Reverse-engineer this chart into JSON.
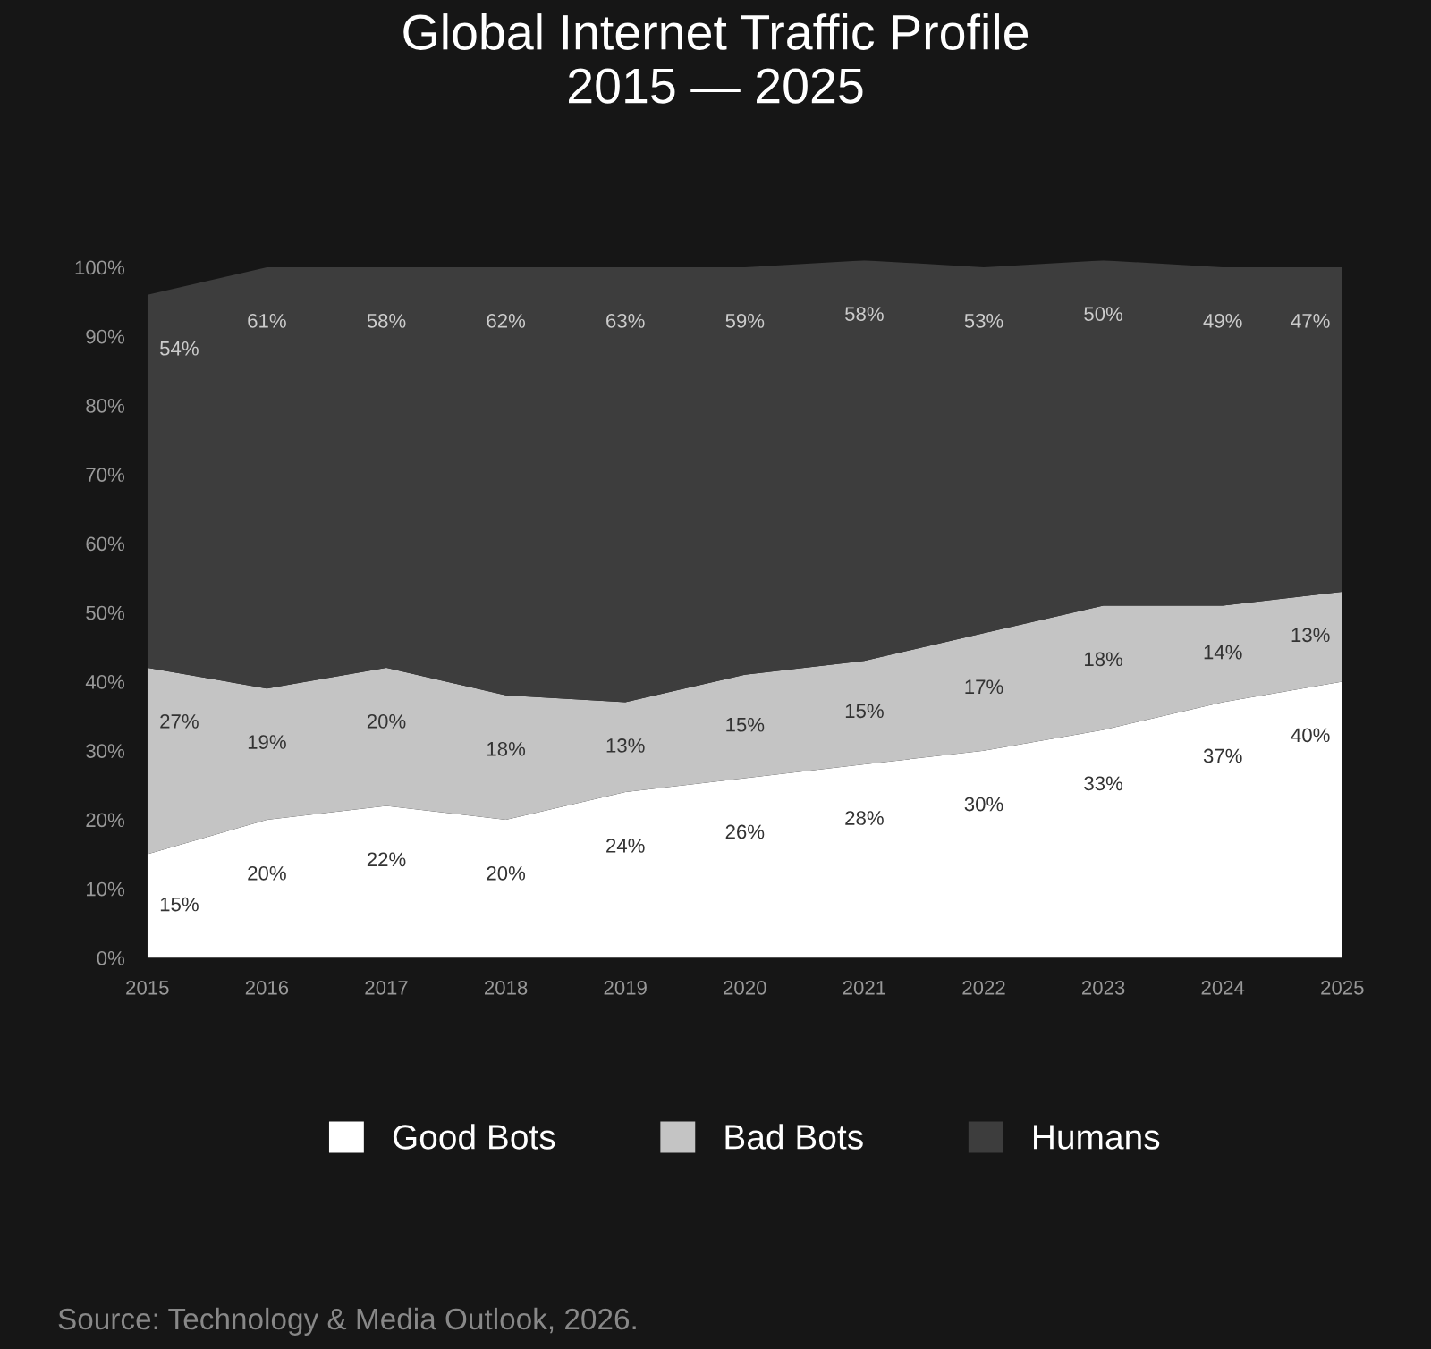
{
  "chart_data": {
    "type": "area",
    "stacked": true,
    "title": "Global Internet Traffic Profile\n2015 — 2025",
    "categories": [
      "2015",
      "2016",
      "2017",
      "2018",
      "2019",
      "2020",
      "2021",
      "2022",
      "2023",
      "2024",
      "2025"
    ],
    "series": [
      {
        "name": "Good Bots",
        "color": "#ffffff",
        "values": [
          15,
          20,
          22,
          20,
          24,
          26,
          28,
          30,
          33,
          37,
          40
        ],
        "value_labels": [
          "15%",
          "20%",
          "22%",
          "20%",
          "24%",
          "26%",
          "28%",
          "30%",
          "33%",
          "37%",
          "40%"
        ]
      },
      {
        "name": "Bad Bots",
        "color": "#c4c4c4",
        "values": [
          27,
          19,
          20,
          18,
          13,
          15,
          15,
          17,
          18,
          14,
          13
        ],
        "value_labels": [
          "27%",
          "19%",
          "20%",
          "18%",
          "13%",
          "15%",
          "15%",
          "17%",
          "18%",
          "14%",
          "13%"
        ]
      },
      {
        "name": "Humans",
        "color": "#3d3d3d",
        "values": [
          54,
          61,
          58,
          62,
          63,
          59,
          58,
          53,
          50,
          49,
          47
        ],
        "value_labels": [
          "54%",
          "61%",
          "58%",
          "62%",
          "63%",
          "59%",
          "58%",
          "53%",
          "50%",
          "49%",
          "47%"
        ]
      }
    ],
    "ylim": [
      0,
      101
    ],
    "yticks": [
      {
        "value": 0,
        "label": "0%"
      },
      {
        "value": 10,
        "label": "10%"
      },
      {
        "value": 20,
        "label": "20%"
      },
      {
        "value": 30,
        "label": "30%"
      },
      {
        "value": 40,
        "label": "40%"
      },
      {
        "value": 50,
        "label": "50%"
      },
      {
        "value": 60,
        "label": "60%"
      },
      {
        "value": 70,
        "label": "70%"
      },
      {
        "value": 80,
        "label": "80%"
      },
      {
        "value": 90,
        "label": "90%"
      },
      {
        "value": 100,
        "label": "100%"
      }
    ],
    "grid": false,
    "legend": "bottom",
    "annotations": [
      "Source: Technology & Media Outlook, 2026."
    ]
  }
}
